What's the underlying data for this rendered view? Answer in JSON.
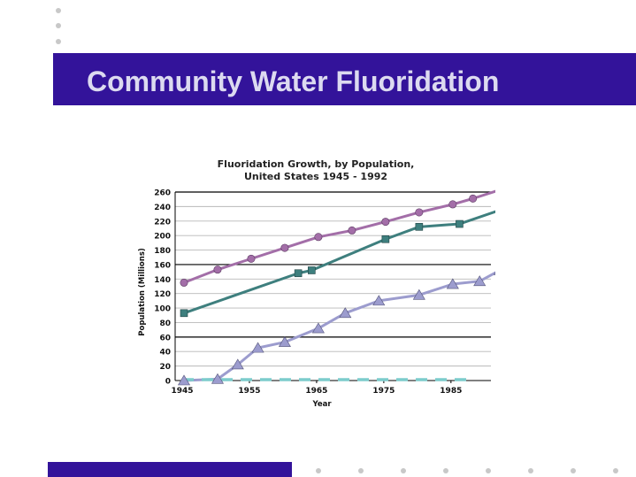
{
  "slide": {
    "title": "Community Water Fluoridation",
    "accent_color": "#33139a"
  },
  "chart_data": {
    "type": "line",
    "title_line1": "Fluoridation Growth, by Population,",
    "title_line2": "United States 1945 - 1992",
    "xlabel": "Year",
    "ylabel": "Population (Millions)",
    "xlim": [
      1945,
      1992
    ],
    "ylim": [
      0,
      260
    ],
    "x_ticks": [
      1945,
      1955,
      1965,
      1975,
      1985
    ],
    "y_ticks": [
      0,
      20,
      40,
      60,
      80,
      100,
      120,
      140,
      160,
      180,
      200,
      220,
      240,
      260
    ],
    "legend": "none",
    "series": [
      {
        "color": "#a36ea8",
        "marker": "circle",
        "x": [
          1945,
          1950,
          1955,
          1960,
          1965,
          1970,
          1975,
          1980,
          1985,
          1988,
          1992
        ],
        "values": [
          135,
          153,
          168,
          183,
          198,
          207,
          219,
          232,
          243,
          251,
          263
        ]
      },
      {
        "color": "#3e7f7e",
        "marker": "square",
        "x": [
          1945,
          1962,
          1964,
          1975,
          1980,
          1986,
          1992
        ],
        "values": [
          93,
          148,
          152,
          195,
          212,
          216,
          235
        ]
      },
      {
        "color": "#9c9cce",
        "marker": "triangle",
        "x": [
          1945,
          1950,
          1953,
          1956,
          1960,
          1965,
          1969,
          1974,
          1980,
          1985,
          1989,
          1992
        ],
        "values": [
          0,
          2,
          22,
          45,
          53,
          72,
          93,
          110,
          118,
          133,
          137,
          152
        ]
      },
      {
        "color": "#7ccccc",
        "marker": "dash",
        "x": [
          1945,
          1992
        ],
        "values": [
          0,
          0
        ]
      }
    ]
  }
}
